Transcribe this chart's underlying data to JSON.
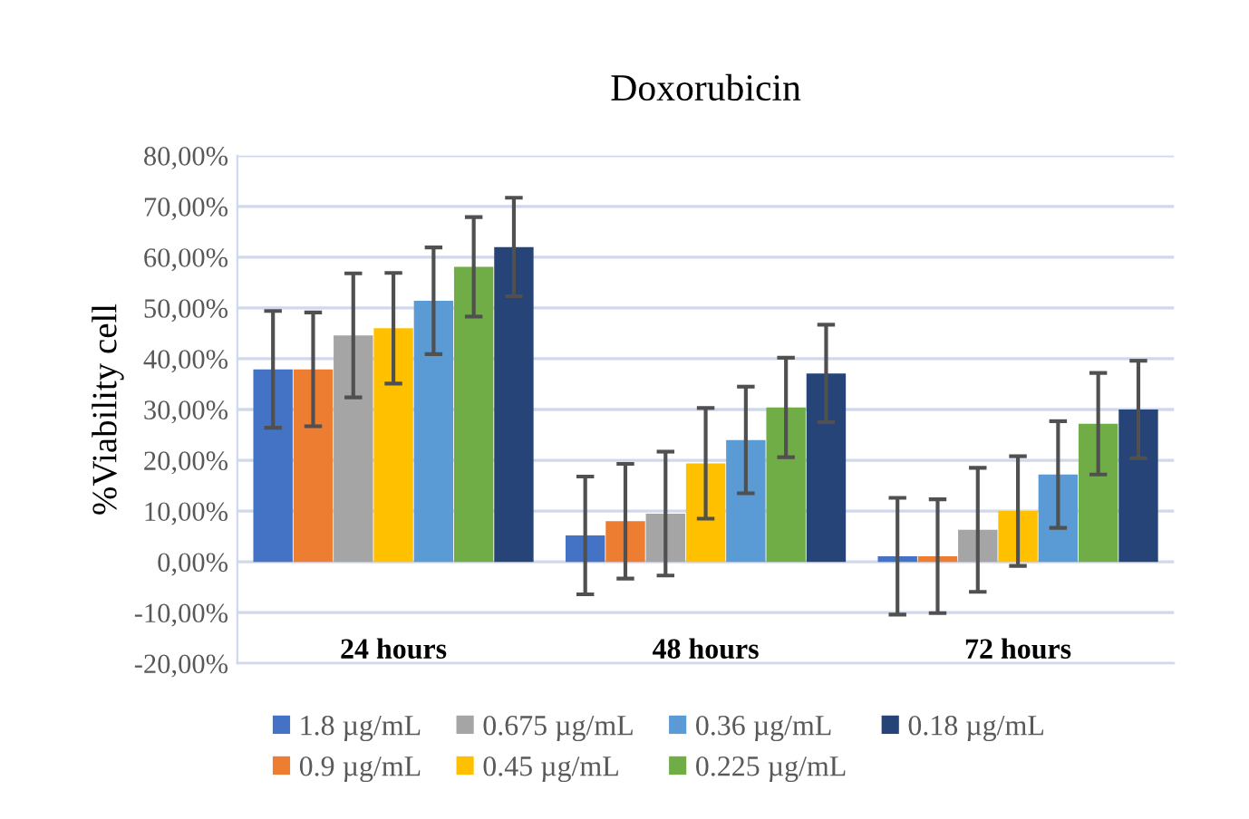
{
  "chart_data": {
    "type": "bar",
    "title": "Doxorubicin",
    "ylabel": "%Viability cell",
    "categories": [
      "24 hours",
      "48 hours",
      "72 hours"
    ],
    "series": [
      {
        "name": "1.8 µg/mL",
        "color": "#4472c4",
        "values": [
          37.9,
          5.2,
          1.1
        ],
        "errors": [
          11.5,
          11.6,
          11.5
        ]
      },
      {
        "name": "0.9 µg/mL",
        "color": "#ed7d31",
        "values": [
          37.9,
          8.0,
          1.1
        ],
        "errors": [
          11.2,
          11.3,
          11.2
        ]
      },
      {
        "name": "0.675 µg/mL",
        "color": "#a5a5a5",
        "values": [
          44.6,
          9.5,
          6.3
        ],
        "errors": [
          12.2,
          12.2,
          12.2
        ]
      },
      {
        "name": "0.45 µg/mL",
        "color": "#ffc000",
        "values": [
          46.0,
          19.4,
          10.0
        ],
        "errors": [
          10.9,
          10.9,
          10.8
        ]
      },
      {
        "name": "0.36 µg/mL",
        "color": "#5b9bd5",
        "values": [
          51.4,
          24.0,
          17.2
        ],
        "errors": [
          10.5,
          10.5,
          10.5
        ]
      },
      {
        "name": "0.225 µg/mL",
        "color": "#70ad47",
        "values": [
          58.1,
          30.4,
          27.2
        ],
        "errors": [
          9.8,
          9.8,
          10.0
        ]
      },
      {
        "name": "0.18 µg/mL",
        "color": "#264478",
        "values": [
          62.0,
          37.1,
          30.0
        ],
        "errors": [
          9.7,
          9.6,
          9.6
        ]
      }
    ],
    "ylim": [
      -20,
      80
    ],
    "yticks": [
      {
        "value": -20,
        "label": "-20,00%"
      },
      {
        "value": -10,
        "label": "-10,00%"
      },
      {
        "value": 0,
        "label": "0,00%"
      },
      {
        "value": 10,
        "label": "10,00%"
      },
      {
        "value": 20,
        "label": "20,00%"
      },
      {
        "value": 30,
        "label": "30,00%"
      },
      {
        "value": 40,
        "label": "40,00%"
      },
      {
        "value": 50,
        "label": "50,00%"
      },
      {
        "value": 60,
        "label": "60,00%"
      },
      {
        "value": 70,
        "label": "70,00%"
      },
      {
        "value": 80,
        "label": "80,00%"
      }
    ],
    "grid": "y",
    "legend": "bottom"
  }
}
